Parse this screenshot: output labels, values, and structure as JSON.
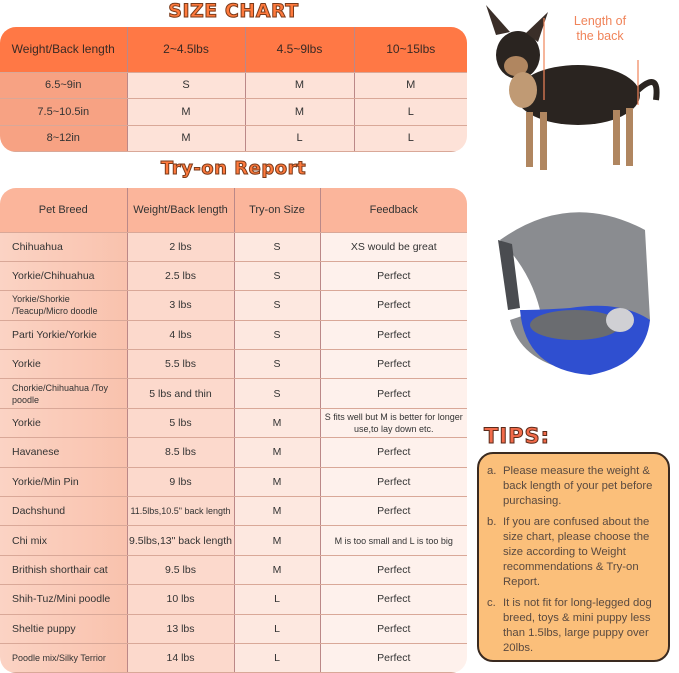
{
  "size_chart": {
    "title": "SIZE CHART",
    "headers": [
      "Weight/Back length",
      "2~4.5lbs",
      "4.5~9lbs",
      "10~15lbs"
    ],
    "rows": [
      [
        "6.5~9in",
        "S",
        "M",
        "M"
      ],
      [
        "7.5~10.5in",
        "M",
        "M",
        "L"
      ],
      [
        "8~12in",
        "M",
        "L",
        "L"
      ]
    ]
  },
  "tryon": {
    "title": "Try-on Report",
    "headers": [
      "Pet Breed",
      "Weight/Back length",
      "Try-on Size",
      "Feedback"
    ],
    "rows": [
      [
        "Chihuahua",
        "2 lbs",
        "S",
        "XS would be great"
      ],
      [
        "Yorkie/Chihuahua",
        "2.5 lbs",
        "S",
        "Perfect"
      ],
      [
        "Yorkie/Shorkie /Teacup/Micro doodle",
        "3 lbs",
        "S",
        "Perfect"
      ],
      [
        "Parti Yorkie/Yorkie",
        "4 lbs",
        "S",
        "Perfect"
      ],
      [
        "Yorkie",
        "5.5 lbs",
        "S",
        "Perfect"
      ],
      [
        "Chorkie/Chihuahua /Toy poodle",
        "5 lbs and thin",
        "S",
        "Perfect"
      ],
      [
        "Yorkie",
        "5 lbs",
        "M",
        "S fits well but M is better for longer use,to lay down etc."
      ],
      [
        "Havanese",
        "8.5 lbs",
        "M",
        "Perfect"
      ],
      [
        "Yorkie/Min Pin",
        "9 lbs",
        "M",
        "Perfect"
      ],
      [
        "Dachshund",
        "11.5lbs,10.5\" back length",
        "M",
        "Perfect"
      ],
      [
        "Chi mix",
        "9.5lbs,13\" back length",
        "M",
        "M is too small and L is too big"
      ],
      [
        "Brithish shorthair cat",
        "9.5 lbs",
        "M",
        "Perfect"
      ],
      [
        "Shih-Tuz/Mini poodle",
        "10 lbs",
        "L",
        "Perfect"
      ],
      [
        "Sheltie puppy",
        "13 lbs",
        "L",
        "Perfect"
      ],
      [
        "Poodle mix/Silky Terrior",
        "14 lbs",
        "L",
        "Perfect"
      ]
    ]
  },
  "dog_photo": {
    "label": "Length of the back"
  },
  "tips": {
    "title": "TIPS:",
    "items": [
      {
        "key": "a.",
        "text": "Please measure the weight & back length of your pet before purchasing."
      },
      {
        "key": "b.",
        "text": "If you are confused about the size chart, please choose the size according to Weight recommendations & Try-on Report."
      },
      {
        "key": "c.",
        "text": "It is not fit for long-legged dog breed, toys & mini puppy less than 1.5lbs, large puppy over 20lbs."
      }
    ]
  },
  "colors": {
    "header": "#ff7845",
    "accent": "#ff7a3d",
    "tips_bg": "#fbbf7a",
    "bag_blue": "#2f4fd0"
  }
}
